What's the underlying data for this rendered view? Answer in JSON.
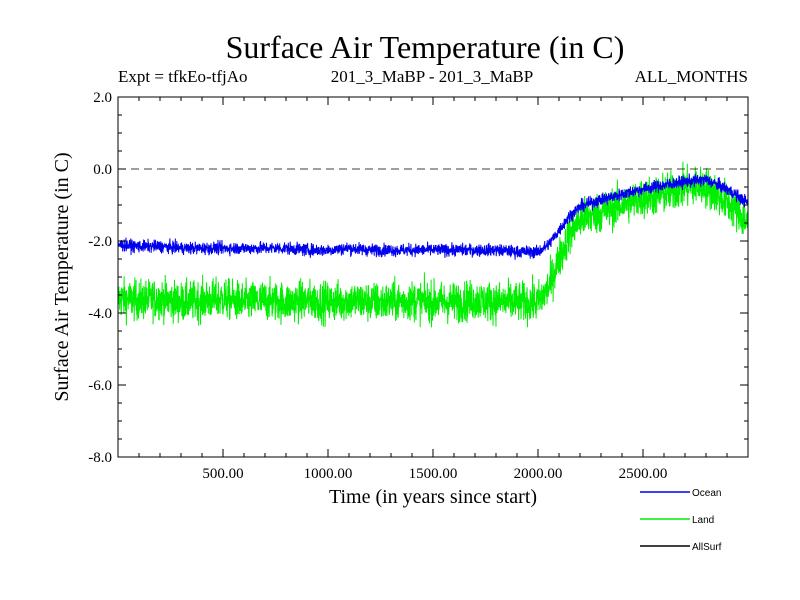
{
  "chart_data": {
    "type": "line",
    "title": "Surface Air Temperature (in C)",
    "subtitle_left": "Expt = tfkEo-tfjAo",
    "subtitle_center": "201_3_MaBP - 201_3_MaBP",
    "subtitle_right": "ALL_MONTHS",
    "xlabel": "Time (in years since start)",
    "ylabel": "Surface Air Temperature (in C)",
    "xlim": [
      0,
      3000
    ],
    "ylim": [
      -8.0,
      2.0
    ],
    "x_ticks": [
      {
        "value": 500,
        "label": "500.00"
      },
      {
        "value": 1000,
        "label": "1000.00"
      },
      {
        "value": 1500,
        "label": "1500.00"
      },
      {
        "value": 2000,
        "label": "2000.00"
      },
      {
        "value": 2500,
        "label": "2500.00"
      }
    ],
    "y_ticks": [
      {
        "value": 2.0,
        "label": "2.0"
      },
      {
        "value": 0.0,
        "label": "0.0"
      },
      {
        "value": -2.0,
        "label": "-2.0"
      },
      {
        "value": -4.0,
        "label": "-4.0"
      },
      {
        "value": -6.0,
        "label": "-6.0"
      },
      {
        "value": -8.0,
        "label": "-8.0"
      }
    ],
    "reference_line": {
      "y": 0.0,
      "style": "dashed"
    },
    "legend_position": "bottom-right",
    "series": [
      {
        "name": "Land",
        "color": "#00ee00",
        "x": [
          0,
          100,
          200,
          300,
          400,
          500,
          600,
          700,
          800,
          900,
          1000,
          1100,
          1200,
          1300,
          1400,
          1500,
          1600,
          1700,
          1800,
          1900,
          2000,
          2050,
          2100,
          2150,
          2200,
          2300,
          2400,
          2500,
          2600,
          2700,
          2800,
          2900,
          3000
        ],
        "values": [
          -3.6,
          -3.65,
          -3.6,
          -3.7,
          -3.65,
          -3.6,
          -3.7,
          -3.65,
          -3.7,
          -3.65,
          -3.7,
          -3.65,
          -3.7,
          -3.7,
          -3.65,
          -3.7,
          -3.7,
          -3.65,
          -3.7,
          -3.7,
          -3.7,
          -3.3,
          -2.5,
          -1.8,
          -1.4,
          -1.2,
          -1.0,
          -0.8,
          -0.7,
          -0.5,
          -0.5,
          -0.9,
          -1.5
        ]
      },
      {
        "name": "Ocean",
        "color": "#0000ee",
        "x": [
          0,
          100,
          200,
          300,
          400,
          500,
          600,
          700,
          800,
          900,
          1000,
          1100,
          1200,
          1300,
          1400,
          1500,
          1600,
          1700,
          1800,
          1900,
          2000,
          2050,
          2100,
          2150,
          2200,
          2300,
          2400,
          2500,
          2600,
          2700,
          2800,
          2900,
          3000
        ],
        "values": [
          -2.1,
          -2.15,
          -2.15,
          -2.2,
          -2.2,
          -2.2,
          -2.2,
          -2.2,
          -2.2,
          -2.25,
          -2.25,
          -2.2,
          -2.25,
          -2.25,
          -2.25,
          -2.25,
          -2.25,
          -2.25,
          -2.25,
          -2.3,
          -2.3,
          -2.1,
          -1.7,
          -1.3,
          -1.05,
          -0.85,
          -0.7,
          -0.55,
          -0.45,
          -0.35,
          -0.3,
          -0.55,
          -0.95
        ]
      },
      {
        "name": "AllSurf",
        "color": "#000000",
        "x": [],
        "values": []
      }
    ]
  }
}
